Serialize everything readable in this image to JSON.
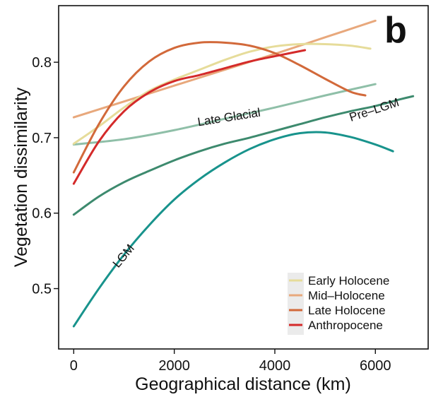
{
  "chart_data": {
    "type": "line",
    "panel_label": "b",
    "xlabel": "Geographical distance (km)",
    "ylabel": "Vegetation dissimilarity",
    "xlim": [
      -300,
      7050
    ],
    "ylim": [
      0.42,
      0.875
    ],
    "x_ticks": [
      0,
      2000,
      4000,
      6000
    ],
    "y_ticks": [
      0.5,
      0.6,
      0.7,
      0.8
    ],
    "y_tick_labels": [
      "0.5",
      "0.6",
      "0.7",
      "0.8"
    ],
    "grid": false,
    "legend_position": "bottom-right",
    "series": [
      {
        "name": "Early Holocene",
        "color": "#e6dc9a",
        "legend": true,
        "x": [
          0,
          500,
          1000,
          1500,
          2000,
          2500,
          3000,
          3500,
          4000,
          4500,
          5000,
          5500,
          5900
        ],
        "y": [
          0.692,
          0.715,
          0.74,
          0.762,
          0.777,
          0.79,
          0.803,
          0.814,
          0.821,
          0.824,
          0.824,
          0.822,
          0.818
        ]
      },
      {
        "name": "Mid–Holocene",
        "color": "#e8a87c",
        "legend": true,
        "x": [
          0,
          1000,
          2000,
          3000,
          4000,
          5000,
          6000
        ],
        "y": [
          0.727,
          0.748,
          0.769,
          0.79,
          0.811,
          0.833,
          0.855
        ]
      },
      {
        "name": "Late Holocene",
        "color": "#d2693a",
        "legend": true,
        "x": [
          0,
          500,
          1000,
          1500,
          2000,
          2500,
          3000,
          3500,
          4000,
          4500,
          5000,
          5500,
          5800
        ],
        "y": [
          0.654,
          0.718,
          0.768,
          0.801,
          0.819,
          0.826,
          0.826,
          0.822,
          0.812,
          0.796,
          0.778,
          0.761,
          0.756
        ]
      },
      {
        "name": "Anthropocene",
        "color": "#d42a2a",
        "legend": true,
        "x": [
          0,
          500,
          1000,
          1500,
          2000,
          2500,
          3000,
          3500,
          4000,
          4600
        ],
        "y": [
          0.639,
          0.695,
          0.735,
          0.76,
          0.775,
          0.783,
          0.792,
          0.801,
          0.808,
          0.816
        ]
      },
      {
        "name": "Late Glacial",
        "color": "#8fbfa8",
        "legend": false,
        "x": [
          0,
          1000,
          2000,
          3000,
          4000,
          5000,
          6000
        ],
        "y": [
          0.691,
          0.698,
          0.71,
          0.725,
          0.74,
          0.756,
          0.771
        ]
      },
      {
        "name": "Pre–LGM",
        "color": "#3d8a6e",
        "legend": false,
        "x": [
          0,
          500,
          1000,
          1500,
          2000,
          2500,
          3000,
          3500,
          4000,
          4500,
          5000,
          5500,
          6000,
          6500,
          6750
        ],
        "y": [
          0.598,
          0.622,
          0.641,
          0.656,
          0.67,
          0.682,
          0.692,
          0.7,
          0.709,
          0.718,
          0.727,
          0.735,
          0.742,
          0.751,
          0.755
        ]
      },
      {
        "name": "LGM",
        "color": "#18938c",
        "legend": false,
        "x": [
          0,
          500,
          1000,
          1500,
          2000,
          2500,
          3000,
          3500,
          4000,
          4500,
          5000,
          5500,
          6000,
          6350
        ],
        "y": [
          0.45,
          0.5,
          0.545,
          0.584,
          0.618,
          0.645,
          0.667,
          0.685,
          0.698,
          0.706,
          0.707,
          0.701,
          0.691,
          0.682
        ]
      }
    ],
    "annotations": [
      {
        "text": "Late Glacial",
        "x": 3100,
        "y": 0.722,
        "angle": -9
      },
      {
        "text": "Pre–LGM",
        "x": 6000,
        "y": 0.732,
        "angle": -18
      },
      {
        "text": "LGM",
        "x": 1050,
        "y": 0.54,
        "angle": -50
      }
    ]
  }
}
